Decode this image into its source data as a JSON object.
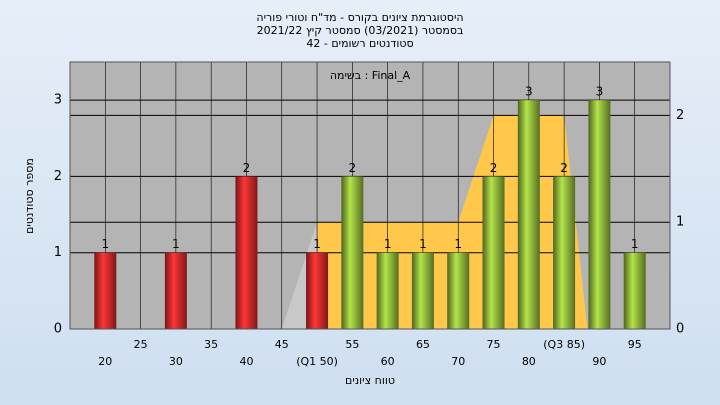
{
  "chart_data": {
    "type": "bar",
    "title": [
      "היסטוגרמת ציונים בקורס - מד\"ח וטורי פוריה",
      "בסמסטר  (03/2021)  סמסטר קיץ 2021/22",
      "סטודנטים רשומים - 42"
    ],
    "annotation": "בשימה : Final_A",
    "x_label": "טווח ציונים",
    "y_label": "מספר סטודנטים",
    "x": [
      20,
      30,
      40,
      50,
      55,
      60,
      65,
      70,
      75,
      80,
      85,
      90,
      95
    ],
    "values": [
      1,
      1,
      2,
      1,
      2,
      1,
      1,
      1,
      2,
      3,
      2,
      3,
      1
    ],
    "colors": [
      "#d42a2a",
      "#d42a2a",
      "#d42a2a",
      "#d42a2a",
      "#8fb63a",
      "#8fb63a",
      "#8fb63a",
      "#8fb63a",
      "#8fb63a",
      "#8fb63a",
      "#8fb63a",
      "#8fb63a",
      "#8fb63a"
    ],
    "areas": [
      {
        "color": "#c8c8c8",
        "x": [
          45,
          50,
          50
        ],
        "values": [
          0,
          1,
          0
        ],
        "axis": "y2"
      },
      {
        "color": "#ffc84a",
        "x": [
          50,
          50,
          70,
          75,
          85,
          88.3
        ],
        "values": [
          0,
          1,
          1,
          2,
          2,
          0
        ],
        "axis": "y2"
      }
    ],
    "xlim": [
      15,
      100
    ],
    "xticks": [
      20,
      25,
      30,
      35,
      40,
      45,
      {
        "value": 50,
        "label": "(Q1 50)"
      },
      55,
      60,
      65,
      70,
      75,
      80,
      {
        "value": 85,
        "label": "(Q3 85)"
      },
      90,
      95
    ],
    "ylim": [
      0,
      3.5
    ],
    "yticks": [
      0,
      1,
      2,
      3
    ],
    "y2lim": [
      0,
      2.5
    ],
    "y2ticks": [
      0,
      1,
      2
    ],
    "grid": true
  }
}
